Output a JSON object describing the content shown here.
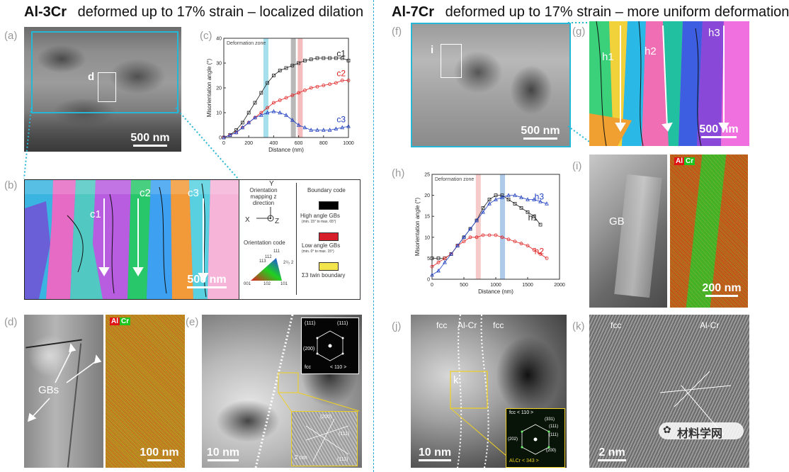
{
  "titles": {
    "left_bold": "Al-3Cr",
    "left_rest": "deformed up to 17% strain – localized dilation",
    "right_bold": "Al-7Cr",
    "right_rest": "deformed up to 17% strain – more uniform deformation"
  },
  "panel_labels": {
    "a": "(a)",
    "b": "(b)",
    "c": "(c)",
    "d": "(d)",
    "e": "(e)",
    "f": "(f)",
    "g": "(g)",
    "h": "(h)",
    "i": "(i)",
    "j": "(j)",
    "k": "(k)"
  },
  "panel_a": {
    "inset_label": "d",
    "scale": "500 nm"
  },
  "panel_b": {
    "lines": [
      "c1",
      "c2",
      "c3"
    ],
    "scale": "500 nm"
  },
  "legend": {
    "orient_title": "Orientation mapping z direction",
    "axis_y": "Y",
    "axis_x": "X",
    "axis_z": "Z",
    "orient_code": "Orientation code",
    "tri_labels": [
      "111",
      "112",
      "113",
      "2¹/₂ 2",
      "001",
      "102",
      "101"
    ],
    "boundary_title": "Boundary code",
    "high": "High angle GBs",
    "high_sub": "(min. 15° to max. 65°)",
    "low": "Low angle GBs",
    "low_sub": "(min. 0° to max. 15°)",
    "twin": "Σ3 twin boundary",
    "colors": {
      "high": "#000000",
      "low": "#d81d2a",
      "twin": "#f2e44b"
    }
  },
  "panel_d": {
    "label": "GBs",
    "scale": "100 nm",
    "eds_al": "Al",
    "eds_cr": "Cr"
  },
  "panel_e": {
    "scale": "10 nm",
    "fft_top_left": "(111)",
    "fft_top_right": "(111)",
    "fft_left": "(200)",
    "fft_zone": "< 110 >",
    "fft_phase": "fcc",
    "hr_label1": "(200)",
    "hr_label2": "(111)",
    "hr_label3": "(111)",
    "hr_scale": "2 nm"
  },
  "panel_f": {
    "inset_label": "i",
    "scale": "500 nm"
  },
  "panel_g": {
    "lines": [
      "h1",
      "h2",
      "h3"
    ],
    "scale": "500 nm"
  },
  "panel_i": {
    "label": "GB",
    "scale": "200 nm",
    "eds_al": "Al",
    "eds_cr": "Cr"
  },
  "panel_j": {
    "fcc1": "fcc",
    "mid": "Al-Cr",
    "fcc2": "fcc",
    "box": "k",
    "scale": "10 nm",
    "fft_title": "fcc < 110 >",
    "fft_bottom": "Al₇Cr < 343 >",
    "fft_a": "(331)",
    "fft_b": "(111)",
    "fft_c": "(111)",
    "fft_d": "(200)",
    "fft_e": "(202)"
  },
  "panel_k": {
    "fcc": "fcc",
    "alcr": "Al-Cr",
    "scale": "2 nm",
    "watermark": "材料学网"
  },
  "colors": {
    "teal_box": "#27b7d6",
    "divider": "#27a8d6",
    "c1": "#222222",
    "c2": "#e02020",
    "c3": "#2040c0"
  },
  "chart_data": [
    {
      "id": "c",
      "type": "scatter",
      "title": "",
      "annotation": "Deformation zone",
      "xlabel": "Distance (nm)",
      "ylabel": "Misorientation angle (°)",
      "xlim": [
        0,
        1000
      ],
      "ylim": [
        0,
        40
      ],
      "xticks": [
        0,
        200,
        400,
        600,
        800,
        1000
      ],
      "yticks": [
        0,
        10,
        20,
        30,
        40
      ],
      "bands": [
        {
          "x": 335,
          "color": "#7fd2e6"
        },
        {
          "x": 555,
          "color": "#9a9a9a"
        },
        {
          "x": 610,
          "color": "#f0a0a0"
        }
      ],
      "series": [
        {
          "name": "c1",
          "color": "#222222",
          "x": [
            0,
            50,
            100,
            150,
            200,
            250,
            300,
            350,
            400,
            450,
            500,
            550,
            600,
            650,
            700,
            750,
            800,
            850,
            900,
            950,
            1000
          ],
          "y": [
            0,
            1,
            3,
            6,
            10,
            14,
            18,
            22,
            25,
            27,
            28,
            29,
            30,
            31,
            31.5,
            32,
            32,
            32,
            32,
            32,
            31
          ]
        },
        {
          "name": "c2",
          "color": "#e02020",
          "x": [
            0,
            50,
            100,
            150,
            200,
            250,
            300,
            350,
            400,
            450,
            500,
            550,
            600,
            650,
            700,
            750,
            800,
            850,
            900,
            950,
            1000
          ],
          "y": [
            0,
            1,
            2,
            4,
            6,
            8,
            10,
            12,
            14,
            15,
            16,
            17,
            18,
            19,
            20,
            20.5,
            21,
            21.5,
            22,
            23,
            23
          ]
        },
        {
          "name": "c3",
          "color": "#2040c0",
          "x": [
            0,
            50,
            100,
            150,
            200,
            250,
            300,
            350,
            400,
            450,
            500,
            550,
            600,
            650,
            700,
            750,
            800,
            850,
            900,
            950,
            1000
          ],
          "y": [
            0,
            1,
            2,
            4,
            6,
            8,
            9,
            10,
            10.5,
            10,
            9,
            7,
            5,
            4,
            3,
            3,
            3,
            3,
            3.5,
            4,
            4.5
          ]
        }
      ]
    },
    {
      "id": "h",
      "type": "scatter",
      "title": "",
      "annotation": "Deformation zone",
      "xlabel": "Distance (nm)",
      "ylabel": "Misorientation angle (°)",
      "xlim": [
        0,
        2000
      ],
      "ylim": [
        0,
        25
      ],
      "xticks": [
        0,
        500,
        1000,
        1500,
        2000
      ],
      "yticks": [
        0,
        5,
        10,
        15,
        20,
        25
      ],
      "bands": [
        {
          "x": 720,
          "color": "#f4b4b4"
        },
        {
          "x": 1100,
          "color": "#8ab4e0"
        }
      ],
      "series": [
        {
          "name": "h1",
          "color": "#222222",
          "x": [
            0,
            100,
            200,
            300,
            400,
            500,
            600,
            700,
            800,
            900,
            1000,
            1100,
            1200,
            1300,
            1400,
            1500,
            1600,
            1700
          ],
          "y": [
            5,
            5,
            5,
            6,
            8,
            10,
            12,
            14,
            17,
            19,
            20,
            20,
            19,
            18,
            17,
            16,
            15,
            13
          ]
        },
        {
          "name": "h2",
          "color": "#e02020",
          "x": [
            0,
            100,
            200,
            300,
            400,
            500,
            600,
            700,
            800,
            900,
            1000,
            1100,
            1200,
            1300,
            1400,
            1500,
            1600,
            1700,
            1800
          ],
          "y": [
            3,
            4,
            5,
            6,
            8,
            9,
            10,
            10,
            10.5,
            10.5,
            10.5,
            10,
            9.5,
            9,
            8.5,
            8,
            7,
            6,
            5
          ]
        },
        {
          "name": "h3",
          "color": "#2040c0",
          "x": [
            0,
            100,
            200,
            300,
            400,
            500,
            600,
            700,
            800,
            900,
            1000,
            1100,
            1200,
            1300,
            1400,
            1500,
            1600,
            1700,
            1800
          ],
          "y": [
            1,
            2,
            4,
            6,
            8,
            10,
            12,
            14,
            16,
            18,
            19,
            19.5,
            20,
            20,
            19.5,
            19,
            19,
            18.5,
            18
          ]
        }
      ]
    }
  ]
}
